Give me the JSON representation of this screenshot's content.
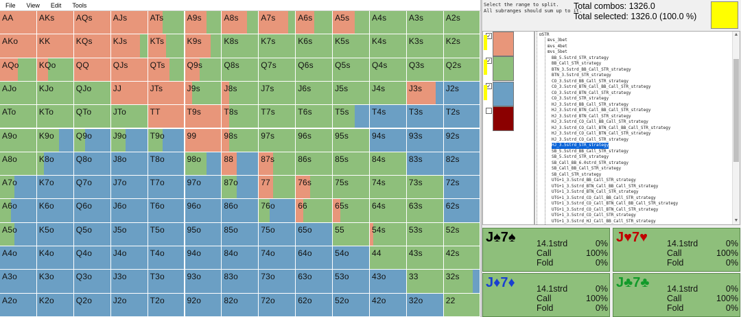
{
  "colors": {
    "raise": "#e8967a",
    "call": "#8ebf7b",
    "fold": "#6b9fc4",
    "allin": "#8b0000",
    "highlight": "#ffff00"
  },
  "menu": [
    "File",
    "View",
    "Edit",
    "Tools"
  ],
  "grid": {
    "rows": [
      [
        "AA",
        "AKs",
        "AQs",
        "AJs",
        "ATs",
        "A9s",
        "A8s",
        "A7s",
        "A6s",
        "A5s",
        "A4s",
        "A3s",
        "A2s"
      ],
      [
        "AKo",
        "KK",
        "KQs",
        "KJs",
        "KTs",
        "K9s",
        "K8s",
        "K7s",
        "K6s",
        "K5s",
        "K4s",
        "K3s",
        "K2s"
      ],
      [
        "AQo",
        "KQo",
        "QQ",
        "QJs",
        "QTs",
        "Q9s",
        "Q8s",
        "Q7s",
        "Q6s",
        "Q5s",
        "Q4s",
        "Q3s",
        "Q2s"
      ],
      [
        "AJo",
        "KJo",
        "QJo",
        "JJ",
        "JTs",
        "J9s",
        "J8s",
        "J7s",
        "J6s",
        "J5s",
        "J4s",
        "J3s",
        "J2s"
      ],
      [
        "ATo",
        "KTo",
        "QTo",
        "JTo",
        "TT",
        "T9s",
        "T8s",
        "T7s",
        "T6s",
        "T5s",
        "T4s",
        "T3s",
        "T2s"
      ],
      [
        "A9o",
        "K9o",
        "Q9o",
        "J9o",
        "T9o",
        "99",
        "98s",
        "97s",
        "96s",
        "95s",
        "94s",
        "93s",
        "92s"
      ],
      [
        "A8o",
        "K8o",
        "Q8o",
        "J8o",
        "T8o",
        "98o",
        "88",
        "87s",
        "86s",
        "85s",
        "84s",
        "83s",
        "82s"
      ],
      [
        "A7o",
        "K7o",
        "Q7o",
        "J7o",
        "T7o",
        "97o",
        "87o",
        "77",
        "76s",
        "75s",
        "74s",
        "73s",
        "72s"
      ],
      [
        "A6o",
        "K6o",
        "Q6o",
        "J6o",
        "T6o",
        "96o",
        "86o",
        "76o",
        "66",
        "65s",
        "64s",
        "63s",
        "62s"
      ],
      [
        "A5o",
        "K5o",
        "Q5o",
        "J5o",
        "T5o",
        "95o",
        "85o",
        "75o",
        "65o",
        "55",
        "54s",
        "53s",
        "52s"
      ],
      [
        "A4o",
        "K4o",
        "Q4o",
        "J4o",
        "T4o",
        "94o",
        "84o",
        "74o",
        "64o",
        "54o",
        "44",
        "43s",
        "42s"
      ],
      [
        "A3o",
        "K3o",
        "Q3o",
        "J3o",
        "T3o",
        "93o",
        "83o",
        "73o",
        "63o",
        "53o",
        "43o",
        "33",
        "32s"
      ],
      [
        "A2o",
        "K2o",
        "Q2o",
        "J2o",
        "T2o",
        "92o",
        "82o",
        "72o",
        "62o",
        "52o",
        "42o",
        "32o",
        "22"
      ]
    ],
    "freqs": [
      [
        "1,0,0",
        "1,0,0",
        "1,0,0",
        "1,0,0",
        "0.4,0.6,0",
        "0.6,0.4,0",
        "0.7,0.3,0",
        "0.8,0.2,0",
        "0.5,0.5,0",
        "0.6,0.4,0",
        "0,1,0",
        "0,1,0",
        "0,1,0"
      ],
      [
        "1,0,0",
        "1,0,0",
        "1,0,0",
        "0.8,0.2,0",
        "0.5,0.5,0",
        "0.7,0.3,0",
        "0,1,0",
        "0,1,0",
        "0,1,0",
        "0,1,0",
        "0,1,0",
        "0,1,0",
        "0,1,0"
      ],
      [
        "0.5,0.5,0",
        "0.3,0.7,0",
        "1,0,0",
        "1,0,0",
        "0.6,0.4,0",
        "0.4,0.6,0",
        "0,1,0",
        "0,1,0",
        "0,1,0",
        "0,1,0",
        "0,1,0",
        "0,1,0",
        "0,1,0"
      ],
      [
        "0,1,0",
        "0,1,0",
        "0,1,0",
        "1,0,0",
        "1,0,0",
        "0.2,0.8,0",
        "0.2,0.8,0",
        "0,1,0",
        "0,1,0",
        "0,1,0",
        "0,1,0",
        "0.8,0,0.2",
        "0,0,1"
      ],
      [
        "0,1,0",
        "0,1,0",
        "0,1,0",
        "0,1,0",
        "1,0,0",
        "1,0,0",
        "0.2,0.8,0",
        "0,1,0",
        "0,1,0",
        "0,0.6,0.4",
        "0,0,1",
        "0,0,1",
        "0,0,1"
      ],
      [
        "0,1,0",
        "0,0.6,0.4",
        "0,0.3,0.7",
        "0,0.4,0.6",
        "0,0.4,0.6",
        "1,0,0",
        "0.2,0.8,0",
        "0,1,0",
        "0,1,0",
        "0,1,0",
        "0,0,1",
        "0,0,1",
        "0,0,1"
      ],
      [
        "0,1,0",
        "0,0.2,0.8",
        "0,0,1",
        "0,0,1",
        "0,0,1",
        "0,0.6,0.4",
        "0.4,0,0.6",
        "0.4,0.6,0",
        "0,1,0",
        "0,1,0",
        "0,1,0",
        "0,0,1",
        "0,0,1"
      ],
      [
        "0,0.4,0.6",
        "0,0,1",
        "0,0,1",
        "0,0,1",
        "0,0,1",
        "0,0,1",
        "0,0.4,0.6",
        "0.4,0.6,0",
        "0.4,0.6,0",
        "0,1,0",
        "0,1,0",
        "0,1,0",
        "0,0,1"
      ],
      [
        "0,0.3,0.7",
        "0,0,1",
        "0,0,1",
        "0,0,1",
        "0,0,1",
        "0,0,1",
        "0,0,1",
        "0,0.3,0.7",
        "0.2,0.8,0",
        "0.2,0.8,0",
        "0,1,0",
        "0,1,0",
        "0,0,1"
      ],
      [
        "0,0.4,0.6",
        "0,0,1",
        "0,0,1",
        "0,0,1",
        "0,0,1",
        "0,0,1",
        "0,0,1",
        "0,0,1",
        "0,0,1",
        "0,1,0",
        "0.1,0.9,0",
        "0,1,0",
        "0,1,0"
      ],
      [
        "0,0,1",
        "0,0,1",
        "0,0,1",
        "0,0,1",
        "0,0,1",
        "0,0,1",
        "0,0,1",
        "0,0,1",
        "0,0,1",
        "0,0,1",
        "0,1,0",
        "0,1,0",
        "0,1,0"
      ],
      [
        "0,0,1",
        "0,0,1",
        "0,0,1",
        "0,0,1",
        "0,0,1",
        "0,0,1",
        "0,0,1",
        "0,0,1",
        "0,0,1",
        "0,0,1",
        "0,0,1",
        "0,1,0",
        "0,0.8,0.2"
      ],
      [
        "0,0,1",
        "0,0,1",
        "0,0,1",
        "0,0,1",
        "0,0,1",
        "0,0,1",
        "0,0,1",
        "0,0,1",
        "0,0,1",
        "0,0,1",
        "0,0,1",
        "0,0,1",
        "0,1,0"
      ]
    ]
  },
  "instructions": [
    "Select the range to split.",
    "All subranges should sum up to it."
  ],
  "totals": {
    "combos": "Total combos: 1326.0",
    "selected": "Total selected: 1326.0 (100.0 %)"
  },
  "subranges": [
    {
      "checked": "✓",
      "color": "#e8967a",
      "mark": true
    },
    {
      "checked": "✓",
      "color": "#8ebf7b",
      "mark": true
    },
    {
      "checked": "✓",
      "color": "#6b9fc4",
      "mark": true
    },
    {
      "checked": "",
      "color": "#8b0000",
      "mark": false
    }
  ],
  "tree": {
    "root": "STR",
    "groups": [
      "vs_3bet",
      "vs_4bet",
      "vs_5bet"
    ],
    "items": [
      "BB_5.5strd_STR_strategy",
      "BB_Call_STR_strategy",
      "BTN_3.5strd_BB_Call_STR_strategy",
      "BTN_3.5strd_STR_strategy",
      "CO_3.5strd_BB_Call_STR_strategy",
      "CO_3.5strd_BTN_Call_BB_Call_STR_strategy",
      "CO_3.5strd_BTN_Call_STR_strategy",
      "CO_3.5strd_STR_strategy",
      "HJ_3.5strd_BB_Call_STR_strategy",
      "HJ_3.5strd_BTN_Call_BB_Call_STR_strategy",
      "HJ_3.5strd_BTN_Call_STR_strategy",
      "HJ_3.5strd_CO_Call_BB_Call_STR_strategy",
      "HJ_3.5strd_CO_Call_BTN_Call_BB_Call_STR_strategy",
      "HJ_3.5strd_CO_Call_BTN_Call_STR_strategy",
      "HJ_3.5strd_CO_Call_STR_strategy",
      "HJ_3.5strd_STR_strategy",
      "SB_5.5strd_BB_Call_STR_strategy",
      "SB_5.5strd_STR_strategy",
      "SB_Call_BB_6.0strd_STR_strategy",
      "SB_Call_BB_Call_STR_strategy",
      "SB_Call_STR_strategy",
      "UTG+1_3.5strd_BB_Call_STR_strategy",
      "UTG+1_3.5strd_BTN_Call_BB_Call_STR_strategy",
      "UTG+1_3.5strd_BTN_Call_STR_strategy",
      "UTG+1_3.5strd_CO_Call_BB_Call_STR_strategy",
      "UTG+1_3.5strd_CO_Call_BTN_Call_BB_Call_STR_strategy",
      "UTG+1_3.5strd_CO_Call_BTN_Call_STR_strategy",
      "UTG+1_3.5strd_CO_Call_STR_strategy",
      "UTG+1_3.5strd_HJ_Call_BB_Call_STR_strategy"
    ],
    "selected_index": 15
  },
  "combos": [
    {
      "name": "J♠7♠",
      "color": "#000000",
      "rows": [
        [
          "14.1strd",
          "0%"
        ],
        [
          "Call",
          "100%"
        ],
        [
          "Fold",
          "0%"
        ]
      ]
    },
    {
      "name": "J♥7♥",
      "color": "#c00000",
      "rows": [
        [
          "14.1strd",
          "0%"
        ],
        [
          "Call",
          "100%"
        ],
        [
          "Fold",
          "0%"
        ]
      ]
    },
    {
      "name": "J♦7♦",
      "color": "#1a3fd0",
      "rows": [
        [
          "14.1strd",
          "0%"
        ],
        [
          "Call",
          "100%"
        ],
        [
          "Fold",
          "0%"
        ]
      ]
    },
    {
      "name": "J♣7♣",
      "color": "#129a2a",
      "rows": [
        [
          "14.1strd",
          "0%"
        ],
        [
          "Call",
          "100%"
        ],
        [
          "Fold",
          "0%"
        ]
      ]
    }
  ]
}
